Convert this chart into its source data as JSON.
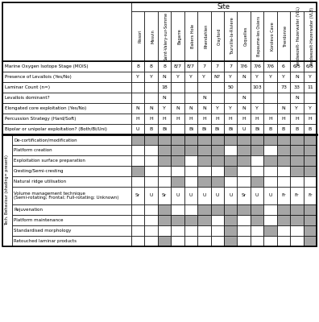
{
  "site_header": "Site",
  "col_headers": [
    "Rissori",
    "Mesvin",
    "Saint-Valery-sur-Somme",
    "Bagarre",
    "Bakers Hole",
    "Rhendahlen",
    "Crayford",
    "Tourville-la-Riviere",
    "Coquelles",
    "Bapaume-les Osiers",
    "Korolevo Cave",
    "Therdonne",
    "Veldwezelt- Hezerwater (VLL)",
    "Veldwezelt-Hezerwater (VLB)"
  ],
  "row_labels_top": [
    "Marine Oxygen Isotope Stage (MOIS)",
    "Presence of Levallois (Yes/No)",
    "Laminar Count (n=)",
    "Levallois dominant?",
    "Elongated core exploitation (Yes/No)",
    "Percussion Strategy (Hard/Soft)",
    "Bipolar or unipolar exploitation? (Both/Bi/Uni)"
  ],
  "data_top": [
    [
      "8",
      "8",
      "8",
      "8/7",
      "8/7",
      "7",
      "7",
      "7",
      "7/6",
      "7/6",
      "7/6",
      "6",
      "6/5",
      "6/5"
    ],
    [
      "Y",
      "Y",
      "N",
      "Y",
      "Y",
      "Y",
      "N?",
      "Y",
      "N",
      "Y",
      "Y",
      "Y",
      "N",
      "Y"
    ],
    [
      "",
      "",
      "18",
      "",
      "",
      "",
      "",
      "50",
      "",
      "103",
      "",
      "73",
      "33",
      "11"
    ],
    [
      "",
      "",
      "N",
      "",
      "",
      "N",
      "",
      "",
      "N",
      "",
      "",
      "",
      "N",
      ""
    ],
    [
      "N",
      "N",
      "Y",
      "N",
      "N",
      "N",
      "Y",
      "Y",
      "N",
      "Y",
      "",
      "N",
      "Y",
      "Y"
    ],
    [
      "H",
      "H",
      "H",
      "H",
      "H",
      "H",
      "H",
      "H",
      "H",
      "H",
      "H",
      "H",
      "H",
      "H"
    ],
    [
      "U",
      "B",
      "Bi",
      "",
      "Bi",
      "Bi",
      "Bi",
      "Bi",
      "U",
      "Bi",
      "B",
      "B",
      "B",
      "B"
    ]
  ],
  "row_labels_shading": [
    "De-cortification/modification",
    "Platform creation",
    "Exploitation surface preparation",
    "Cresting/Semi-cresting",
    "Natural ridge utilisation",
    "Volume management technique\n(Semi-rotating; Frontal; Full-rotating; Unknown)",
    "Rejuvenation",
    "Platform maintenance",
    "Standardised morphology",
    "Retouched laminar products"
  ],
  "vol_mgmt_values": [
    "Sr",
    "U",
    "Sr",
    "U",
    "U",
    "U",
    "U",
    "U",
    "Sr",
    "U",
    "U",
    "Fr",
    "Fr",
    "Fr"
  ],
  "shading_data": [
    [
      1,
      1,
      1,
      1,
      1,
      1,
      1,
      1,
      1,
      1,
      1,
      1,
      1,
      1
    ],
    [
      0,
      0,
      1,
      1,
      1,
      1,
      1,
      0,
      1,
      1,
      0,
      1,
      1,
      1
    ],
    [
      0,
      0,
      1,
      1,
      0,
      1,
      1,
      1,
      1,
      0,
      1,
      1,
      1,
      1
    ],
    [
      1,
      0,
      0,
      0,
      0,
      0,
      0,
      1,
      0,
      0,
      0,
      0,
      1,
      1
    ],
    [
      0,
      0,
      0,
      1,
      0,
      1,
      1,
      0,
      0,
      1,
      0,
      0,
      0,
      0
    ],
    [
      0,
      0,
      0,
      0,
      0,
      0,
      0,
      0,
      0,
      0,
      0,
      0,
      0,
      0
    ],
    [
      0,
      0,
      1,
      0,
      0,
      1,
      1,
      1,
      1,
      1,
      0,
      1,
      1,
      1
    ],
    [
      0,
      0,
      1,
      1,
      1,
      1,
      0,
      1,
      0,
      1,
      0,
      1,
      1,
      1
    ],
    [
      0,
      0,
      0,
      0,
      0,
      0,
      0,
      1,
      0,
      0,
      1,
      0,
      0,
      1
    ],
    [
      0,
      0,
      1,
      0,
      0,
      0,
      0,
      1,
      0,
      0,
      0,
      0,
      0,
      1
    ]
  ],
  "shading_color": "#a6a6a6",
  "fig_bg": "#ffffff"
}
